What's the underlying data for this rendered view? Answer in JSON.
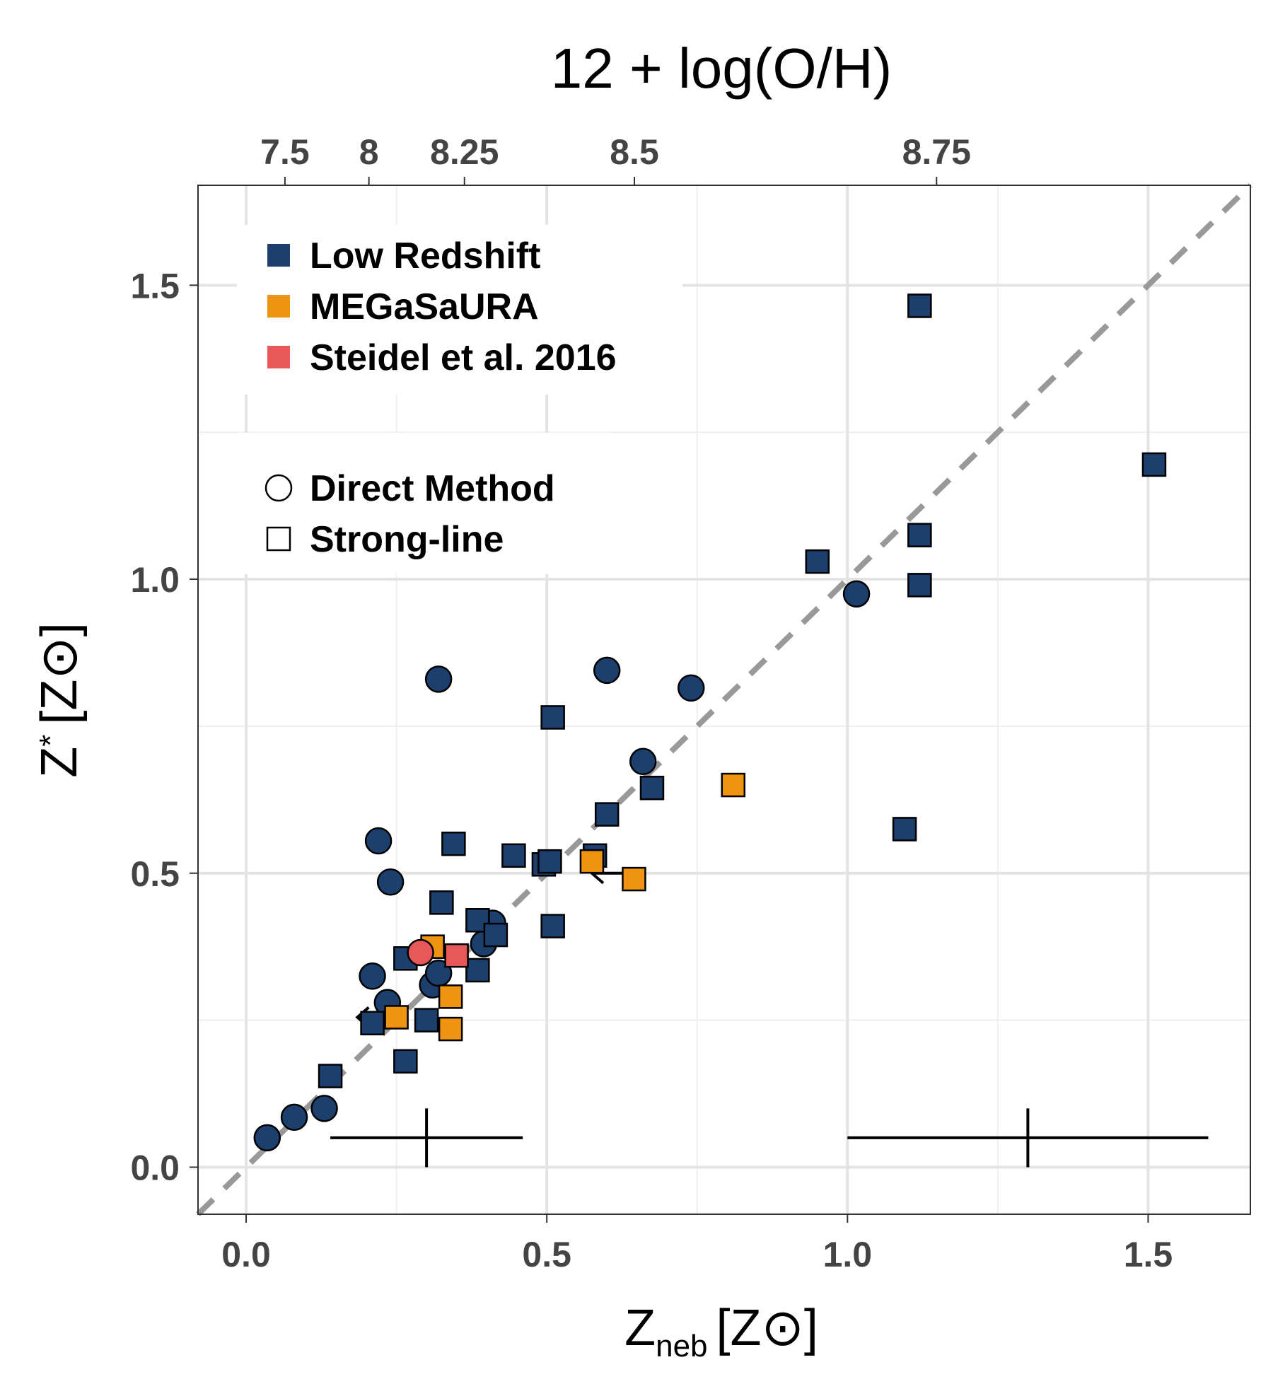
{
  "chart_data": {
    "type": "scatter",
    "xlabel": "Z",
    "xlabel_sub": "neb",
    "xlabel_unit": "[Z⊙]",
    "ylabel": "Z",
    "ylabel_sub": "*",
    "ylabel_unit": "[Z⊙]",
    "top_axis_title": "12 + log(O/H)",
    "xlim": [
      -0.08,
      1.67
    ],
    "ylim": [
      -0.08,
      1.67
    ],
    "x_ticks": [
      {
        "value": 0.0,
        "label": "0.0"
      },
      {
        "value": 0.5,
        "label": "0.5"
      },
      {
        "value": 1.0,
        "label": "1.0"
      },
      {
        "value": 1.5,
        "label": "1.5"
      }
    ],
    "y_ticks": [
      {
        "value": 0.0,
        "label": "0.0"
      },
      {
        "value": 0.5,
        "label": "0.5"
      },
      {
        "value": 1.0,
        "label": "1.0"
      },
      {
        "value": 1.5,
        "label": "1.5"
      }
    ],
    "top_ticks": [
      {
        "value": 7.5,
        "label": "7.5"
      },
      {
        "value": 8.0,
        "label": "8"
      },
      {
        "value": 8.25,
        "label": "8.25"
      },
      {
        "value": 8.5,
        "label": "8.5"
      },
      {
        "value": 8.75,
        "label": "8.75"
      }
    ],
    "top_axis_solar_oh": 8.69,
    "one_to_one_line": true,
    "legend_color": [
      {
        "label": "Low Redshift",
        "color": "#1c3f6e"
      },
      {
        "label": "MEGaSaURA",
        "color": "#ef9312"
      },
      {
        "label": "Steidel et al. 2016",
        "color": "#e85858"
      }
    ],
    "legend_shape": [
      {
        "label": "Direct Method",
        "shape": "circle"
      },
      {
        "label": "Strong-line",
        "shape": "square"
      }
    ],
    "series": [
      {
        "name": "Low Redshift",
        "shape": "circle",
        "color": "#1c3f6e",
        "points": [
          [
            0.035,
            0.05
          ],
          [
            0.08,
            0.085
          ],
          [
            0.13,
            0.1
          ],
          [
            0.22,
            0.555
          ],
          [
            0.24,
            0.485
          ],
          [
            0.21,
            0.325
          ],
          [
            0.235,
            0.28
          ],
          [
            0.32,
            0.83
          ],
          [
            0.31,
            0.31
          ],
          [
            0.32,
            0.33
          ],
          [
            0.395,
            0.38
          ],
          [
            0.41,
            0.415
          ],
          [
            0.6,
            0.845
          ],
          [
            0.66,
            0.69
          ],
          [
            0.74,
            0.815
          ],
          [
            1.015,
            0.975
          ]
        ]
      },
      {
        "name": "Low Redshift",
        "shape": "square",
        "color": "#1c3f6e",
        "points": [
          [
            0.14,
            0.155
          ],
          [
            0.21,
            0.245
          ],
          [
            0.265,
            0.18
          ],
          [
            0.265,
            0.355
          ],
          [
            0.3,
            0.25
          ],
          [
            0.325,
            0.45
          ],
          [
            0.345,
            0.55
          ],
          [
            0.385,
            0.335
          ],
          [
            0.385,
            0.42
          ],
          [
            0.415,
            0.395
          ],
          [
            0.445,
            0.53
          ],
          [
            0.495,
            0.515
          ],
          [
            0.505,
            0.52
          ],
          [
            0.51,
            0.41
          ],
          [
            0.51,
            0.765
          ],
          [
            0.58,
            0.53
          ],
          [
            0.6,
            0.6
          ],
          [
            0.675,
            0.645
          ],
          [
            0.95,
            1.03
          ],
          [
            1.095,
            0.575
          ],
          [
            1.12,
            0.99
          ],
          [
            1.12,
            1.075
          ],
          [
            1.12,
            1.465
          ],
          [
            1.51,
            1.195
          ]
        ]
      },
      {
        "name": "MEGaSaURA",
        "shape": "square",
        "color": "#ef9312",
        "points": [
          [
            0.25,
            0.255
          ],
          [
            0.31,
            0.375
          ],
          [
            0.34,
            0.29
          ],
          [
            0.34,
            0.235
          ],
          [
            0.575,
            0.52
          ],
          [
            0.645,
            0.49
          ],
          [
            0.81,
            0.65
          ]
        ]
      },
      {
        "name": "Steidel et al. 2016",
        "shape": "circle",
        "color": "#e85858",
        "points": [
          [
            0.29,
            0.365
          ]
        ]
      },
      {
        "name": "Steidel et al. 2016",
        "shape": "square",
        "color": "#e85858",
        "points": [
          [
            0.35,
            0.36
          ]
        ]
      }
    ],
    "upper_limit_arrows": [
      {
        "from": [
          0.625,
          0.5
        ],
        "to": [
          0.575,
          0.5
        ]
      },
      {
        "from": [
          0.21,
          0.255
        ],
        "to": [
          0.185,
          0.255
        ]
      }
    ],
    "error_bars": [
      {
        "center": [
          0.3,
          0.05
        ],
        "x_range": [
          0.14,
          0.46
        ],
        "y_range": [
          0.0,
          0.1
        ]
      },
      {
        "center": [
          1.3,
          0.05
        ],
        "x_range": [
          1.0,
          1.6
        ],
        "y_range": [
          0.0,
          0.1
        ]
      }
    ]
  }
}
